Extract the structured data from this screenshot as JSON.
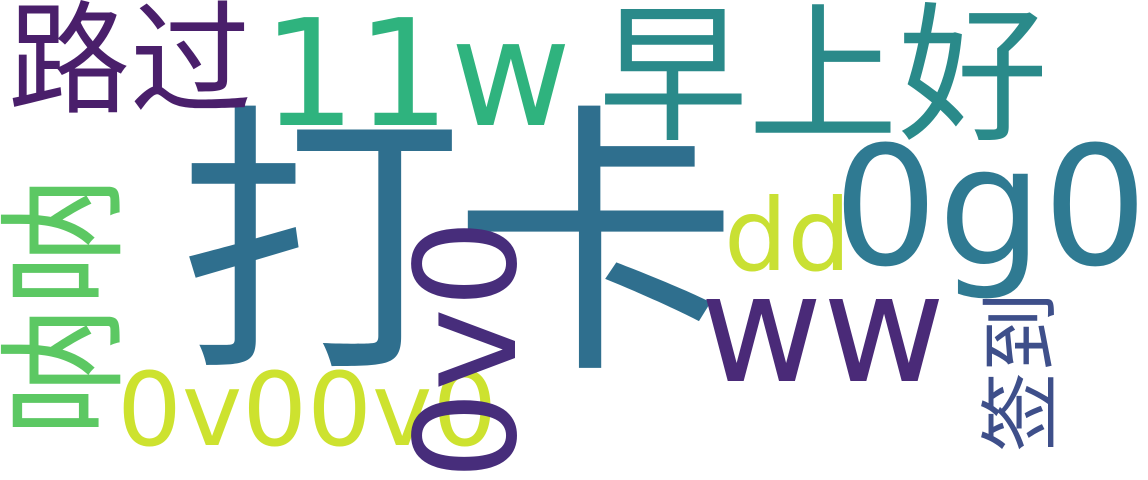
{
  "words": [
    {
      "text": "打卡",
      "color": "#2f6f8e"
    },
    {
      "text": "早上好",
      "color": "#2a8a8a"
    },
    {
      "text": "路过",
      "color": "#4a1f6b"
    },
    {
      "text": "11w",
      "color": "#2fb37e"
    },
    {
      "text": "0g0",
      "color": "#2f7a92"
    },
    {
      "text": "ww",
      "color": "#4a2a78"
    },
    {
      "text": "dd",
      "color": "#c9e033"
    },
    {
      "text": "0v00v0",
      "color": "#cde22f"
    },
    {
      "text": "呐呐",
      "color": "#5cc863"
    },
    {
      "text": "0v0",
      "color": "#472d7b"
    },
    {
      "text": "签到",
      "color": "#3e4f8a"
    }
  ]
}
